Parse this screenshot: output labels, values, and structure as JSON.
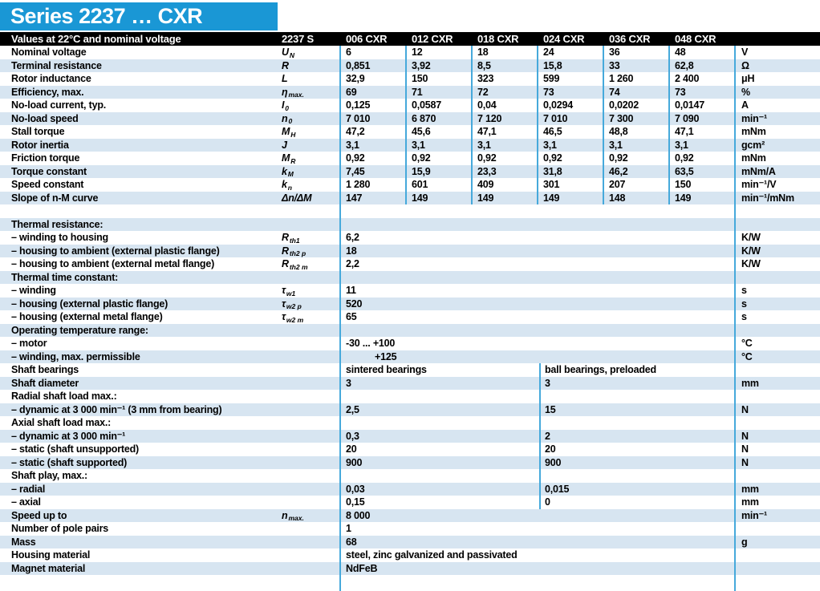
{
  "page_title": "Series 2237 … CXR",
  "colors": {
    "brand_blue": "#1a97d5",
    "header_black": "#000000",
    "stripe_blue": "#d7e5f1",
    "divider_blue": "#46a9db"
  },
  "table": {
    "header": {
      "label": "Values at 22°C and nominal voltage",
      "series": "2237 S",
      "variants": [
        "006 CXR",
        "012 CXR",
        "018 CXR",
        "024 CXR",
        "036 CXR",
        "048 CXR"
      ]
    },
    "rows": [
      {
        "type": "cols",
        "stripe": false,
        "label": "Nominal voltage",
        "symbol": {
          "base": "U",
          "sub": "N"
        },
        "values": [
          "6",
          "12",
          "18",
          "24",
          "36",
          "48"
        ],
        "unit": "V"
      },
      {
        "type": "cols",
        "stripe": true,
        "label": "Terminal resistance",
        "symbol": {
          "base": "R",
          "sub": ""
        },
        "values": [
          "0,851",
          "3,92",
          "8,5",
          "15,8",
          "33",
          "62,8"
        ],
        "unit": "Ω"
      },
      {
        "type": "cols",
        "stripe": false,
        "label": "Rotor inductance",
        "symbol": {
          "base": "L",
          "sub": ""
        },
        "values": [
          "32,9",
          "150",
          "323",
          "599",
          "1 260",
          "2 400"
        ],
        "unit": "μH"
      },
      {
        "type": "cols",
        "stripe": true,
        "label": "Efficiency, max.",
        "symbol": {
          "base": "η",
          "sub": "max."
        },
        "values": [
          "69",
          "71",
          "72",
          "73",
          "74",
          "73"
        ],
        "unit": "%"
      },
      {
        "type": "cols",
        "stripe": false,
        "label": "No-load current, typ.",
        "symbol": {
          "base": "I",
          "sub": "0"
        },
        "values": [
          "0,125",
          "0,0587",
          "0,04",
          "0,0294",
          "0,0202",
          "0,0147"
        ],
        "unit": "A"
      },
      {
        "type": "cols",
        "stripe": true,
        "label": "No-load speed",
        "symbol": {
          "base": "n",
          "sub": "0"
        },
        "values": [
          "7 010",
          "6 870",
          "7 120",
          "7 010",
          "7 300",
          "7 090"
        ],
        "unit": "min⁻¹"
      },
      {
        "type": "cols",
        "stripe": false,
        "label": "Stall torque",
        "symbol": {
          "base": "M",
          "sub": "H"
        },
        "values": [
          "47,2",
          "45,6",
          "47,1",
          "46,5",
          "48,8",
          "47,1"
        ],
        "unit": "mNm"
      },
      {
        "type": "cols",
        "stripe": true,
        "label": "Rotor inertia",
        "symbol": {
          "base": "J",
          "sub": ""
        },
        "values": [
          "3,1",
          "3,1",
          "3,1",
          "3,1",
          "3,1",
          "3,1"
        ],
        "unit": "gcm²"
      },
      {
        "type": "cols",
        "stripe": false,
        "label": "Friction torque",
        "symbol": {
          "base": "M",
          "sub": "R"
        },
        "values": [
          "0,92",
          "0,92",
          "0,92",
          "0,92",
          "0,92",
          "0,92"
        ],
        "unit": "mNm"
      },
      {
        "type": "cols",
        "stripe": true,
        "label": "Torque constant",
        "symbol": {
          "base": "k",
          "sub": "M"
        },
        "values": [
          "7,45",
          "15,9",
          "23,3",
          "31,8",
          "46,2",
          "63,5"
        ],
        "unit": "mNm/A"
      },
      {
        "type": "cols",
        "stripe": false,
        "label": "Speed constant",
        "symbol": {
          "base": "k",
          "sub": "n"
        },
        "values": [
          "1 280",
          "601",
          "409",
          "301",
          "207",
          "150"
        ],
        "unit": "min⁻¹/V"
      },
      {
        "type": "cols",
        "stripe": true,
        "label": "Slope of n-M curve",
        "symbol": {
          "base": "Δn/ΔM",
          "sub": ""
        },
        "values": [
          "147",
          "149",
          "149",
          "149",
          "148",
          "149"
        ],
        "unit": "min⁻¹/mNm"
      },
      {
        "type": "empty",
        "stripe": false
      },
      {
        "type": "section",
        "stripe": true,
        "label": "Thermal resistance:"
      },
      {
        "type": "span",
        "stripe": false,
        "label": "– winding to housing",
        "symbol": {
          "base": "R",
          "sub": "th1"
        },
        "value": "6,2",
        "unit": "K/W"
      },
      {
        "type": "span",
        "stripe": true,
        "label": "– housing to ambient (external plastic flange)",
        "symbol": {
          "base": "R",
          "sub": "th2 p"
        },
        "value": "18",
        "unit": "K/W"
      },
      {
        "type": "span",
        "stripe": false,
        "label": "– housing to ambient (external metal flange)",
        "symbol": {
          "base": "R",
          "sub": "th2 m"
        },
        "value": "2,2",
        "unit": "K/W"
      },
      {
        "type": "section",
        "stripe": true,
        "label": "Thermal time constant:"
      },
      {
        "type": "span",
        "stripe": false,
        "label": "– winding",
        "symbol": {
          "base": "τ",
          "sub": "w1"
        },
        "value": "11",
        "unit": "s"
      },
      {
        "type": "span",
        "stripe": true,
        "label": "– housing (external plastic flange)",
        "symbol": {
          "base": "τ",
          "sub": "w2 p"
        },
        "value": "520",
        "unit": "s"
      },
      {
        "type": "span",
        "stripe": false,
        "label": "– housing (external metal flange)",
        "symbol": {
          "base": "τ",
          "sub": "w2 m"
        },
        "value": "65",
        "unit": "s"
      },
      {
        "type": "section",
        "stripe": true,
        "label": "Operating temperature range:"
      },
      {
        "type": "span",
        "stripe": false,
        "label": "– motor",
        "value": "-30 ... +100",
        "unit": "°C"
      },
      {
        "type": "span",
        "stripe": true,
        "label": "– winding, max. permissible",
        "value": "+125",
        "unit": "°C",
        "indent": true
      },
      {
        "type": "split",
        "stripe": false,
        "label": "Shaft bearings",
        "left": "sintered bearings",
        "right": "ball bearings, preloaded",
        "unit": ""
      },
      {
        "type": "split",
        "stripe": true,
        "label": "Shaft diameter",
        "left": "3",
        "right": "3",
        "unit": "mm"
      },
      {
        "type": "section",
        "stripe": false,
        "label": "Radial shaft load max.:"
      },
      {
        "type": "split",
        "stripe": true,
        "label": "– dynamic at 3 000 min⁻¹ (3 mm from bearing)",
        "left": "2,5",
        "right": "15",
        "unit": "N"
      },
      {
        "type": "section",
        "stripe": false,
        "label": "Axial shaft load max.:"
      },
      {
        "type": "split",
        "stripe": true,
        "label": "– dynamic at 3 000 min⁻¹",
        "left": "0,3",
        "right": "2",
        "unit": "N"
      },
      {
        "type": "split",
        "stripe": false,
        "label": "– static (shaft unsupported)",
        "left": "20",
        "right": "20",
        "unit": "N"
      },
      {
        "type": "split",
        "stripe": true,
        "label": "– static (shaft supported)",
        "left": "900",
        "right": "900",
        "unit": "N"
      },
      {
        "type": "section",
        "stripe": false,
        "label": "Shaft play, max.:"
      },
      {
        "type": "split",
        "stripe": true,
        "label": "– radial",
        "left": "0,03",
        "right": "0,015",
        "unit": "mm"
      },
      {
        "type": "split",
        "stripe": false,
        "label": "– axial",
        "left": "0,15",
        "right": "0",
        "unit": "mm"
      },
      {
        "type": "span",
        "stripe": true,
        "label": "Speed up to",
        "symbol": {
          "base": "n",
          "sub": "max."
        },
        "value": "8 000",
        "unit": "min⁻¹"
      },
      {
        "type": "span",
        "stripe": false,
        "label": "Number of pole pairs",
        "value": "1",
        "unit": ""
      },
      {
        "type": "span",
        "stripe": true,
        "label": "Mass",
        "value": "68",
        "unit": "g"
      },
      {
        "type": "span",
        "stripe": false,
        "label": "Housing material",
        "value": "steel, zinc galvanized and passivated",
        "unit": ""
      },
      {
        "type": "span",
        "stripe": true,
        "label": "Magnet material",
        "value": "NdFeB",
        "unit": ""
      },
      {
        "type": "empty",
        "stripe": false
      }
    ]
  }
}
